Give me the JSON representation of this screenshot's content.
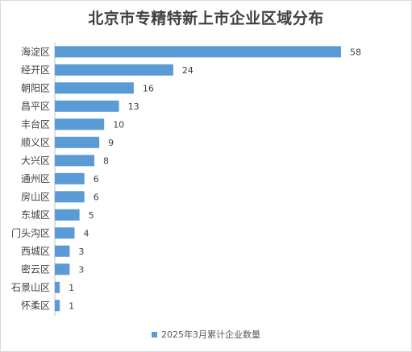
{
  "chart_data": {
    "type": "bar",
    "orientation": "horizontal",
    "title": "北京市专精特新上市企业区域分布",
    "categories": [
      "海淀区",
      "经开区",
      "朝阳区",
      "昌平区",
      "丰台区",
      "顺义区",
      "大兴区",
      "通州区",
      "房山区",
      "东城区",
      "门头沟区",
      "西城区",
      "密云区",
      "石景山区",
      "怀柔区"
    ],
    "series": [
      {
        "name": "2025年3月累计企业数量",
        "values": [
          58,
          24,
          16,
          13,
          10,
          9,
          8,
          6,
          6,
          5,
          4,
          3,
          3,
          1,
          1
        ],
        "color": "#5b9bd5"
      }
    ],
    "xlim": [
      0,
      60
    ],
    "grid": false,
    "data_labels": true,
    "legend_position": "bottom"
  }
}
